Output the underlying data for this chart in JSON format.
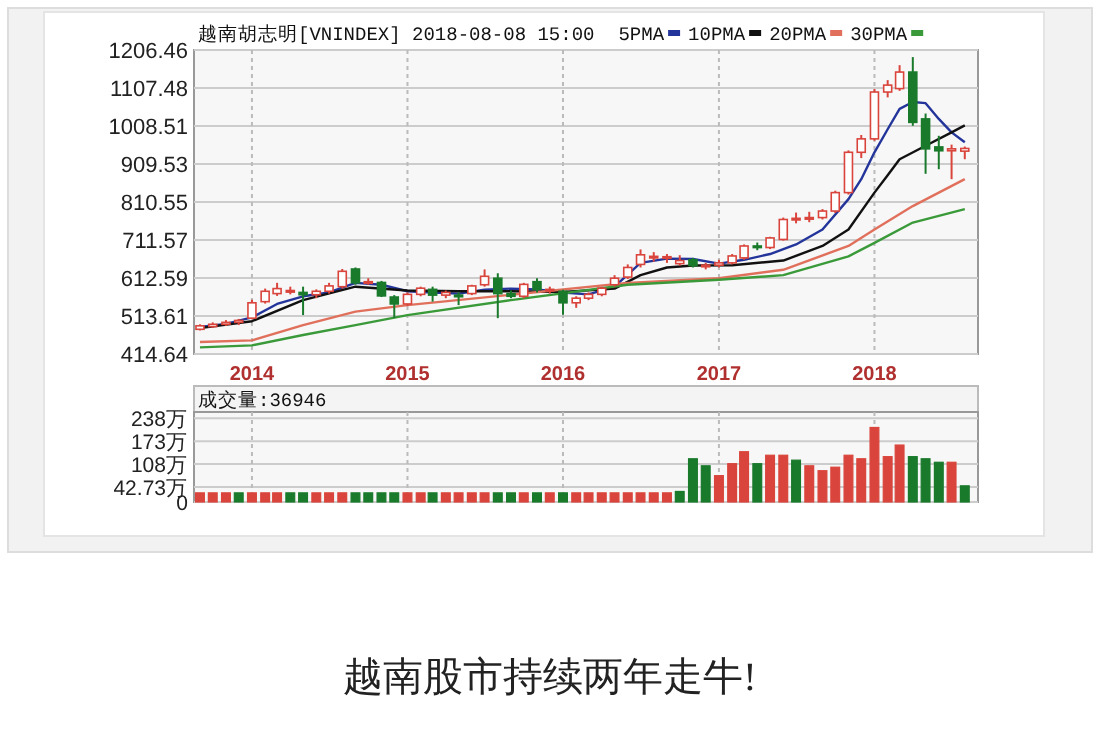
{
  "chart_data": [
    {
      "type": "candlestick",
      "title": "越南胡志明[VNINDEX] 2018-08-08 15:00",
      "legend": "top",
      "grid": true,
      "x": [
        "2013-09",
        "2013-10",
        "2013-11",
        "2013-12",
        "2014-01",
        "2014-02",
        "2014-03",
        "2014-04",
        "2014-05",
        "2014-06",
        "2014-07",
        "2014-08",
        "2014-09",
        "2014-10",
        "2014-11",
        "2014-12",
        "2015-01",
        "2015-02",
        "2015-03",
        "2015-04",
        "2015-05",
        "2015-06",
        "2015-07",
        "2015-08",
        "2015-09",
        "2015-10",
        "2015-11",
        "2015-12",
        "2016-01",
        "2016-02",
        "2016-03",
        "2016-04",
        "2016-05",
        "2016-06",
        "2016-07",
        "2016-08",
        "2016-09",
        "2016-10",
        "2016-11",
        "2016-12",
        "2017-01",
        "2017-02",
        "2017-03",
        "2017-04",
        "2017-05",
        "2017-06",
        "2017-07",
        "2017-08",
        "2017-09",
        "2017-10",
        "2017-11",
        "2017-12",
        "2018-01",
        "2018-02",
        "2018-03",
        "2018-04",
        "2018-05",
        "2018-06",
        "2018-07",
        "2018-08"
      ],
      "ohlc": [
        [
          479,
          492,
          476,
          488
        ],
        [
          486,
          497,
          483,
          492
        ],
        [
          492,
          503,
          488,
          497
        ],
        [
          497,
          506,
          490,
          502
        ],
        [
          508,
          556,
          505,
          548
        ],
        [
          551,
          585,
          546,
          578
        ],
        [
          572,
          600,
          566,
          585
        ],
        [
          578,
          590,
          570,
          580
        ],
        [
          575,
          590,
          516,
          569
        ],
        [
          569,
          583,
          560,
          578
        ],
        [
          578,
          600,
          572,
          592
        ],
        [
          590,
          636,
          585,
          630
        ],
        [
          636,
          640,
          595,
          600
        ],
        [
          600,
          612,
          595,
          603
        ],
        [
          601,
          605,
          563,
          566
        ],
        [
          563,
          568,
          508,
          545
        ],
        [
          545,
          575,
          540,
          570
        ],
        [
          570,
          590,
          565,
          586
        ],
        [
          583,
          590,
          551,
          568
        ],
        [
          568,
          580,
          560,
          575
        ],
        [
          568,
          575,
          542,
          565
        ],
        [
          572,
          595,
          568,
          592
        ],
        [
          595,
          635,
          590,
          617
        ],
        [
          612,
          625,
          508,
          572
        ],
        [
          572,
          580,
          560,
          565
        ],
        [
          565,
          600,
          560,
          596
        ],
        [
          603,
          612,
          575,
          583
        ],
        [
          580,
          590,
          572,
          583
        ],
        [
          578,
          582,
          517,
          548
        ],
        [
          548,
          565,
          535,
          560
        ],
        [
          560,
          575,
          555,
          570
        ],
        [
          570,
          590,
          565,
          586
        ],
        [
          595,
          620,
          590,
          612
        ],
        [
          615,
          648,
          610,
          640
        ],
        [
          648,
          687,
          640,
          673
        ],
        [
          665,
          680,
          655,
          669
        ],
        [
          664,
          675,
          652,
          668
        ],
        [
          650,
          672,
          645,
          658
        ],
        [
          660,
          665,
          640,
          645
        ],
        [
          643,
          652,
          635,
          646
        ],
        [
          646,
          660,
          640,
          652
        ],
        [
          652,
          675,
          648,
          670
        ],
        [
          665,
          700,
          660,
          696
        ],
        [
          696,
          705,
          685,
          692
        ],
        [
          692,
          720,
          688,
          717
        ],
        [
          713,
          770,
          710,
          765
        ],
        [
          765,
          783,
          755,
          768
        ],
        [
          766,
          785,
          758,
          770
        ],
        [
          770,
          792,
          765,
          787
        ],
        [
          787,
          840,
          782,
          835
        ],
        [
          835,
          945,
          830,
          940
        ],
        [
          940,
          985,
          925,
          975
        ],
        [
          975,
          1105,
          970,
          1097
        ],
        [
          1097,
          1128,
          1083,
          1115
        ],
        [
          1106,
          1167,
          1100,
          1149
        ],
        [
          1149,
          1188,
          1009,
          1018
        ],
        [
          1027,
          1041,
          884,
          949
        ],
        [
          954,
          983,
          896,
          944
        ],
        [
          944,
          960,
          870,
          949
        ],
        [
          943,
          955,
          922,
          950
        ]
      ],
      "colors": [
        "#d9453c",
        "#d9453c",
        "#d9453c",
        "#d9453c",
        "#d9453c",
        "#d9453c",
        "#d9453c",
        "#d9453c",
        "#1a7a2c",
        "#d9453c",
        "#d9453c",
        "#d9453c",
        "#1a7a2c",
        "#d9453c",
        "#1a7a2c",
        "#1a7a2c",
        "#d9453c",
        "#d9453c",
        "#1a7a2c",
        "#d9453c",
        "#1a7a2c",
        "#d9453c",
        "#d9453c",
        "#1a7a2c",
        "#1a7a2c",
        "#d9453c",
        "#1a7a2c",
        "#d9453c",
        "#1a7a2c",
        "#d9453c",
        "#d9453c",
        "#d9453c",
        "#d9453c",
        "#d9453c",
        "#d9453c",
        "#d9453c",
        "#d9453c",
        "#d9453c",
        "#1a7a2c",
        "#d9453c",
        "#d9453c",
        "#d9453c",
        "#d9453c",
        "#1a7a2c",
        "#d9453c",
        "#d9453c",
        "#d9453c",
        "#d9453c",
        "#d9453c",
        "#d9453c",
        "#d9453c",
        "#d9453c",
        "#d9453c",
        "#d9453c",
        "#d9453c",
        "#1a7a2c",
        "#1a7a2c",
        "#1a7a2c",
        "#d9453c",
        "#d9453c"
      ],
      "series": [
        {
          "name": "5PMA",
          "type": "line",
          "color": "#23359a",
          "x": [
            "2013-09",
            "2013-11",
            "2014-01",
            "2014-03",
            "2014-05",
            "2014-07",
            "2014-09",
            "2014-11",
            "2015-01",
            "2015-03",
            "2015-05",
            "2015-07",
            "2015-09",
            "2015-11",
            "2016-01",
            "2016-03",
            "2016-05",
            "2016-07",
            "2016-09",
            "2016-11",
            "2017-01",
            "2017-03",
            "2017-05",
            "2017-07",
            "2017-09",
            "2017-11",
            "2017-12",
            "2018-01",
            "2018-02",
            "2018-03",
            "2018-04",
            "2018-05",
            "2018-06",
            "2018-07",
            "2018-08"
          ],
          "values": [
            485,
            493,
            510,
            545,
            565,
            575,
            600,
            595,
            578,
            575,
            572,
            582,
            585,
            583,
            575,
            570,
            590,
            652,
            663,
            662,
            650,
            660,
            675,
            700,
            739,
            818,
            870,
            940,
            1000,
            1053,
            1071,
            1068,
            1027,
            992,
            966
          ]
        },
        {
          "name": "10PMA",
          "type": "line",
          "color": "#111111",
          "x": [
            "2013-09",
            "2014-01",
            "2014-05",
            "2014-09",
            "2015-01",
            "2015-05",
            "2015-09",
            "2016-01",
            "2016-05",
            "2016-07",
            "2016-09",
            "2016-11",
            "2017-02",
            "2017-06",
            "2017-09",
            "2017-11",
            "2018-01",
            "2018-02",
            "2018-03",
            "2018-05",
            "2018-07",
            "2018-08"
          ],
          "values": [
            482,
            500,
            555,
            590,
            580,
            578,
            578,
            576,
            585,
            620,
            640,
            645,
            646,
            658,
            696,
            739,
            835,
            880,
            922,
            957,
            992,
            1010
          ]
        },
        {
          "name": "20PMA",
          "type": "line",
          "color": "#e0705c",
          "x": [
            "2013-09",
            "2014-01",
            "2014-05",
            "2014-09",
            "2015-01",
            "2015-09",
            "2016-06",
            "2017-01",
            "2017-06",
            "2017-11",
            "2018-01",
            "2018-04",
            "2018-08"
          ],
          "values": [
            446,
            450,
            490,
            525,
            542,
            569,
            600,
            612,
            634,
            696,
            739,
            800,
            870
          ]
        },
        {
          "name": "30PMA",
          "type": "line",
          "color": "#3a9a3a",
          "x": [
            "2013-09",
            "2014-01",
            "2014-05",
            "2014-09",
            "2015-01",
            "2015-09",
            "2016-06",
            "2017-01",
            "2017-06",
            "2017-11",
            "2018-01",
            "2018-04",
            "2018-08"
          ],
          "values": [
            432,
            437,
            464,
            490,
            516,
            555,
            595,
            608,
            620,
            669,
            704,
            757,
            792
          ]
        }
      ],
      "xlim": [
        "2013-08-18",
        "2018-09-01"
      ],
      "xticks": [
        "2014",
        "2015",
        "2016",
        "2017",
        "2018"
      ],
      "ylim": [
        414.64,
        1206.46
      ],
      "yticks": [
        414.64,
        513.61,
        612.59,
        711.57,
        810.55,
        909.53,
        1008.51,
        1107.48,
        1206.46
      ]
    },
    {
      "type": "bar",
      "title": "成交量:36946",
      "grid": true,
      "tick_labels": "y",
      "x": [
        "2013-09",
        "2013-10",
        "2013-11",
        "2013-12",
        "2014-01",
        "2014-02",
        "2014-03",
        "2014-04",
        "2014-05",
        "2014-06",
        "2014-07",
        "2014-08",
        "2014-09",
        "2014-10",
        "2014-11",
        "2014-12",
        "2015-01",
        "2015-02",
        "2015-03",
        "2015-04",
        "2015-05",
        "2015-06",
        "2015-07",
        "2015-08",
        "2015-09",
        "2015-10",
        "2015-11",
        "2015-12",
        "2016-01",
        "2016-02",
        "2016-03",
        "2016-04",
        "2016-05",
        "2016-06",
        "2016-07",
        "2016-08",
        "2016-09",
        "2016-10",
        "2016-11",
        "2016-12",
        "2017-01",
        "2017-02",
        "2017-03",
        "2017-04",
        "2017-05",
        "2017-06",
        "2017-07",
        "2017-08",
        "2017-09",
        "2017-10",
        "2017-11",
        "2017-12",
        "2018-01",
        "2018-02",
        "2018-03",
        "2018-04",
        "2018-05",
        "2018-06",
        "2018-07",
        "2018-08"
      ],
      "values": [
        26,
        26,
        26,
        26,
        26,
        26,
        26,
        26,
        26,
        26,
        26,
        26,
        26,
        26,
        26,
        26,
        26,
        26,
        26,
        26,
        26,
        26,
        26,
        26,
        26,
        26,
        26,
        26,
        26,
        26,
        26,
        26,
        26,
        26,
        26,
        26,
        26,
        30,
        123,
        103,
        75,
        109,
        143,
        109,
        133,
        133,
        119,
        103,
        89,
        99,
        133,
        123,
        212,
        129,
        162,
        129,
        123,
        113,
        113,
        46
      ],
      "colors": [
        "#d9453c",
        "#d9453c",
        "#d9453c",
        "#1a7a2c",
        "#d9453c",
        "#d9453c",
        "#d9453c",
        "#1a7a2c",
        "#1a7a2c",
        "#d9453c",
        "#d9453c",
        "#d9453c",
        "#1a7a2c",
        "#1a7a2c",
        "#1a7a2c",
        "#1a7a2c",
        "#d9453c",
        "#d9453c",
        "#1a7a2c",
        "#d9453c",
        "#d9453c",
        "#d9453c",
        "#d9453c",
        "#1a7a2c",
        "#1a7a2c",
        "#d9453c",
        "#1a7a2c",
        "#d9453c",
        "#1a7a2c",
        "#d9453c",
        "#d9453c",
        "#d9453c",
        "#d9453c",
        "#d9453c",
        "#d9453c",
        "#d9453c",
        "#d9453c",
        "#1a7a2c",
        "#1a7a2c",
        "#1a7a2c",
        "#d9453c",
        "#d9453c",
        "#d9453c",
        "#1a7a2c",
        "#d9453c",
        "#d9453c",
        "#1a7a2c",
        "#d9453c",
        "#d9453c",
        "#d9453c",
        "#d9453c",
        "#d9453c",
        "#d9453c",
        "#d9453c",
        "#d9453c",
        "#1a7a2c",
        "#1a7a2c",
        "#1a7a2c",
        "#d9453c",
        "#1a7a2c"
      ],
      "xlim": [
        "2013-08-18",
        "2018-09-01"
      ],
      "xticks": [
        "2014",
        "2015",
        "2016",
        "2017",
        "2018"
      ],
      "ylim": [
        0,
        256
      ],
      "yticks": [
        0,
        {
          "value": 42.73,
          "label": "42.73万"
        },
        {
          "value": 108,
          "label": "108万"
        },
        {
          "value": 173,
          "label": "173万"
        },
        {
          "value": 238,
          "label": "238万"
        }
      ],
      "annotations": [
        "越南股市持续两年走牛!"
      ]
    }
  ]
}
